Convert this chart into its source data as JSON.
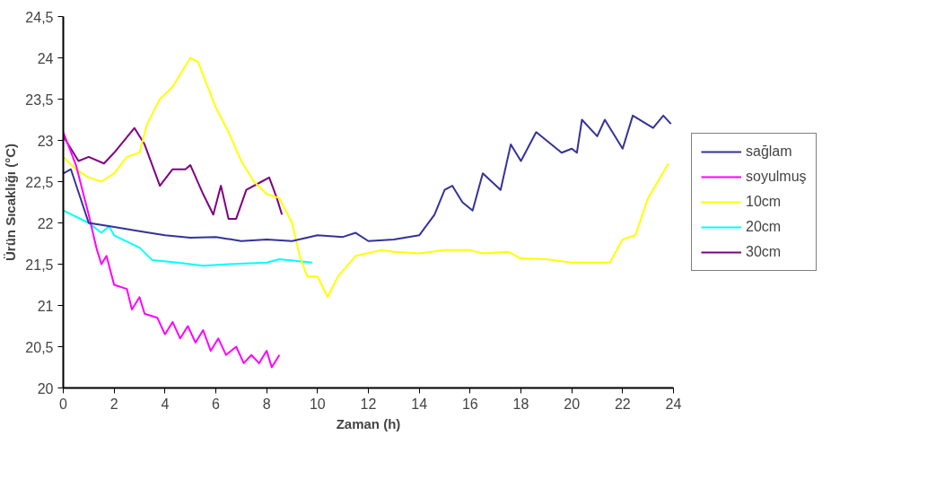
{
  "chart_data": {
    "type": "line",
    "xlabel": "Zaman (h)",
    "ylabel": "Ürün Sıcaklığı (°C)",
    "xlim": [
      0,
      24
    ],
    "xticks": [
      0,
      2,
      4,
      6,
      8,
      10,
      12,
      14,
      16,
      18,
      20,
      22,
      24
    ],
    "ylim": [
      20,
      24.5
    ],
    "yticks": [
      20,
      {
        "value": 20.5,
        "label": "20,5"
      },
      21,
      {
        "value": 21.5,
        "label": "21,5"
      },
      22,
      {
        "value": 22.5,
        "label": "22,5"
      },
      23,
      {
        "value": 23.5,
        "label": "23,5"
      },
      24,
      {
        "value": 24.5,
        "label": "24,5"
      }
    ],
    "grid": false,
    "legend": "right",
    "marker": "none",
    "line_style": "solid",
    "series": [
      {
        "name": "sağlam",
        "color": "#333399",
        "x": [
          0,
          0.3,
          1,
          2,
          3,
          4,
          5,
          6,
          7,
          8,
          9,
          10,
          11,
          11.5,
          12,
          13,
          14,
          14.6,
          15,
          15.3,
          15.7,
          16.1,
          16.5,
          17.2,
          17.6,
          18,
          18.6,
          19.6,
          20,
          20.2,
          20.4,
          21,
          21.3,
          22,
          22.4,
          23.2,
          23.6,
          23.9
        ],
        "values": [
          22.6,
          22.65,
          22.0,
          21.95,
          21.9,
          21.85,
          21.82,
          21.83,
          21.78,
          21.8,
          21.78,
          21.85,
          21.83,
          21.88,
          21.78,
          21.8,
          21.85,
          22.1,
          22.4,
          22.45,
          22.25,
          22.15,
          22.6,
          22.4,
          22.95,
          22.75,
          23.1,
          22.85,
          22.9,
          22.85,
          23.25,
          23.05,
          23.25,
          22.9,
          23.3,
          23.15,
          23.3,
          23.2
        ]
      },
      {
        "name": "soyulmuş",
        "color": "#ff00ff",
        "x": [
          0,
          0.5,
          1,
          1.3,
          1.5,
          1.7,
          2,
          2.5,
          2.7,
          3,
          3.2,
          3.7,
          4,
          4.3,
          4.6,
          4.9,
          5.2,
          5.5,
          5.8,
          6.1,
          6.4,
          6.8,
          7.1,
          7.4,
          7.7,
          8,
          8.2,
          8.5
        ],
        "values": [
          23.1,
          22.7,
          22.1,
          21.7,
          21.5,
          21.6,
          21.25,
          21.2,
          20.95,
          21.1,
          20.9,
          20.85,
          20.65,
          20.8,
          20.6,
          20.75,
          20.55,
          20.7,
          20.45,
          20.6,
          20.4,
          20.5,
          20.3,
          20.4,
          20.3,
          20.45,
          20.25,
          20.4
        ]
      },
      {
        "name": "10cm",
        "color": "#ffff00",
        "x": [
          0,
          0.5,
          1,
          1.5,
          2,
          2.5,
          3,
          3.3,
          3.8,
          4.3,
          5,
          5.3,
          6,
          6.5,
          7,
          7.5,
          8,
          8.5,
          9,
          9.3,
          9.6,
          10,
          10.4,
          10.8,
          11.5,
          12.5,
          13,
          14,
          15,
          16,
          16.5,
          17.5,
          18,
          19,
          20,
          21.5,
          22,
          22.5,
          23,
          23.8
        ],
        "values": [
          22.8,
          22.65,
          22.55,
          22.5,
          22.6,
          22.8,
          22.85,
          23.2,
          23.5,
          23.65,
          24.0,
          23.95,
          23.4,
          23.1,
          22.75,
          22.5,
          22.35,
          22.3,
          22.0,
          21.6,
          21.35,
          21.35,
          21.1,
          21.35,
          21.6,
          21.67,
          21.65,
          21.63,
          21.67,
          21.67,
          21.63,
          21.65,
          21.57,
          21.56,
          21.52,
          21.52,
          21.8,
          21.85,
          22.3,
          22.72
        ]
      },
      {
        "name": "20cm",
        "color": "#00ffff",
        "x": [
          0,
          1,
          1.5,
          1.8,
          2,
          3,
          3.5,
          4.5,
          5.5,
          6.5,
          8,
          8.5,
          9.8
        ],
        "values": [
          22.15,
          22.0,
          21.88,
          21.96,
          21.85,
          21.7,
          21.55,
          21.52,
          21.48,
          21.5,
          21.52,
          21.56,
          21.52
        ]
      },
      {
        "name": "30cm",
        "color": "#800080",
        "x": [
          0,
          0.3,
          0.6,
          1,
          1.6,
          2,
          2.8,
          3.2,
          3.8,
          4.3,
          4.8,
          5,
          5.5,
          5.9,
          6.2,
          6.5,
          6.8,
          7.2,
          7.8,
          8.1,
          8.4,
          8.6
        ],
        "values": [
          23.05,
          22.9,
          22.75,
          22.8,
          22.72,
          22.85,
          23.15,
          22.95,
          22.45,
          22.65,
          22.65,
          22.7,
          22.35,
          22.1,
          22.45,
          22.05,
          22.05,
          22.4,
          22.5,
          22.55,
          22.3,
          22.1
        ]
      }
    ]
  }
}
